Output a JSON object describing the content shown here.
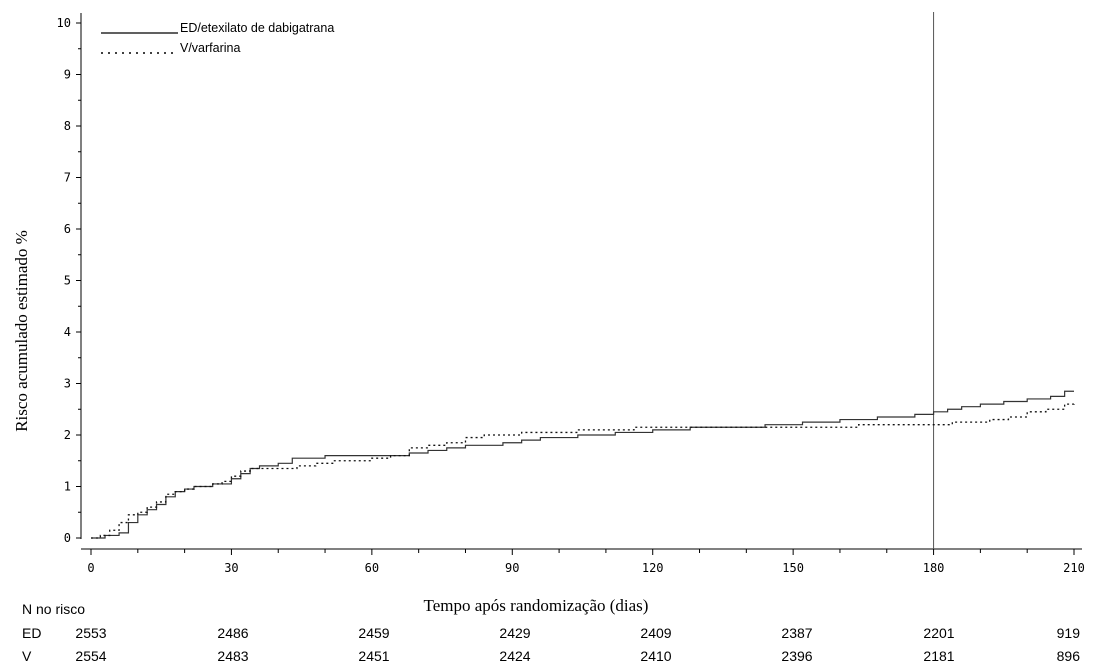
{
  "chart_data": {
    "type": "line",
    "title": "",
    "xlabel": "Tempo após randomização (dias)",
    "ylabel": "Risco acumulado estimado %",
    "xlim": [
      0,
      210
    ],
    "ylim": [
      0,
      10
    ],
    "xticks": [
      0,
      30,
      60,
      90,
      120,
      150,
      180,
      210
    ],
    "yticks": [
      0,
      1,
      2,
      3,
      4,
      5,
      6,
      7,
      8,
      9,
      10
    ],
    "xtick_labels": [
      "0",
      "30",
      "60",
      "90",
      "120",
      "150",
      "180",
      "210"
    ],
    "ytick_labels": [
      "0",
      "1",
      "2",
      "3",
      "4",
      "5",
      "6",
      "7",
      "8",
      "9",
      "10"
    ],
    "reference_line_x": 180,
    "legend_position": "top-left",
    "series": [
      {
        "name": "ED/etexilato de dabigatrana",
        "style": "solid",
        "color": "#000000",
        "x": [
          0,
          3,
          6,
          8,
          10,
          12,
          14,
          16,
          18,
          20,
          22,
          24,
          26,
          28,
          30,
          32,
          34,
          36,
          40,
          43,
          46,
          50,
          55,
          60,
          64,
          68,
          72,
          76,
          80,
          84,
          88,
          92,
          96,
          100,
          104,
          108,
          112,
          116,
          120,
          124,
          128,
          132,
          136,
          140,
          144,
          148,
          152,
          156,
          160,
          164,
          168,
          172,
          176,
          180,
          183,
          186,
          190,
          195,
          200,
          205,
          208,
          210
        ],
        "y": [
          0,
          0.05,
          0.1,
          0.3,
          0.45,
          0.55,
          0.65,
          0.8,
          0.9,
          0.95,
          1.0,
          1.0,
          1.05,
          1.05,
          1.15,
          1.25,
          1.35,
          1.4,
          1.45,
          1.55,
          1.55,
          1.6,
          1.6,
          1.6,
          1.6,
          1.65,
          1.7,
          1.75,
          1.8,
          1.8,
          1.85,
          1.9,
          1.95,
          1.95,
          2.0,
          2.0,
          2.05,
          2.05,
          2.1,
          2.1,
          2.15,
          2.15,
          2.15,
          2.15,
          2.2,
          2.2,
          2.25,
          2.25,
          2.3,
          2.3,
          2.35,
          2.35,
          2.4,
          2.45,
          2.5,
          2.55,
          2.6,
          2.65,
          2.7,
          2.75,
          2.85,
          2.85
        ]
      },
      {
        "name": "V/varfarina",
        "style": "dotted",
        "color": "#000000",
        "x": [
          0,
          2,
          4,
          6,
          8,
          10,
          12,
          14,
          16,
          18,
          20,
          22,
          24,
          26,
          28,
          30,
          32,
          34,
          36,
          40,
          44,
          48,
          52,
          56,
          60,
          64,
          68,
          72,
          76,
          80,
          84,
          88,
          92,
          96,
          100,
          104,
          108,
          112,
          116,
          120,
          124,
          128,
          132,
          136,
          140,
          144,
          148,
          152,
          156,
          160,
          164,
          168,
          172,
          176,
          180,
          184,
          188,
          192,
          196,
          200,
          204,
          208,
          210
        ],
        "y": [
          0,
          0.05,
          0.15,
          0.3,
          0.45,
          0.5,
          0.6,
          0.7,
          0.85,
          0.9,
          0.95,
          1.0,
          1.0,
          1.05,
          1.1,
          1.2,
          1.3,
          1.35,
          1.35,
          1.35,
          1.4,
          1.45,
          1.5,
          1.5,
          1.55,
          1.6,
          1.75,
          1.8,
          1.85,
          1.95,
          2.0,
          2.0,
          2.05,
          2.05,
          2.05,
          2.1,
          2.1,
          2.1,
          2.15,
          2.15,
          2.15,
          2.15,
          2.15,
          2.15,
          2.15,
          2.15,
          2.15,
          2.15,
          2.15,
          2.15,
          2.2,
          2.2,
          2.2,
          2.2,
          2.2,
          2.25,
          2.25,
          2.3,
          2.35,
          2.45,
          2.5,
          2.6,
          2.65
        ]
      }
    ],
    "risk_table": {
      "header": "N no risco",
      "rows": [
        {
          "label": "ED",
          "values": [
            "2553",
            "2486",
            "2459",
            "2429",
            "2409",
            "2387",
            "2201",
            "919"
          ]
        },
        {
          "label": "V",
          "values": [
            "2554",
            "2483",
            "2451",
            "2424",
            "2410",
            "2396",
            "2181",
            "896"
          ]
        }
      ]
    }
  }
}
